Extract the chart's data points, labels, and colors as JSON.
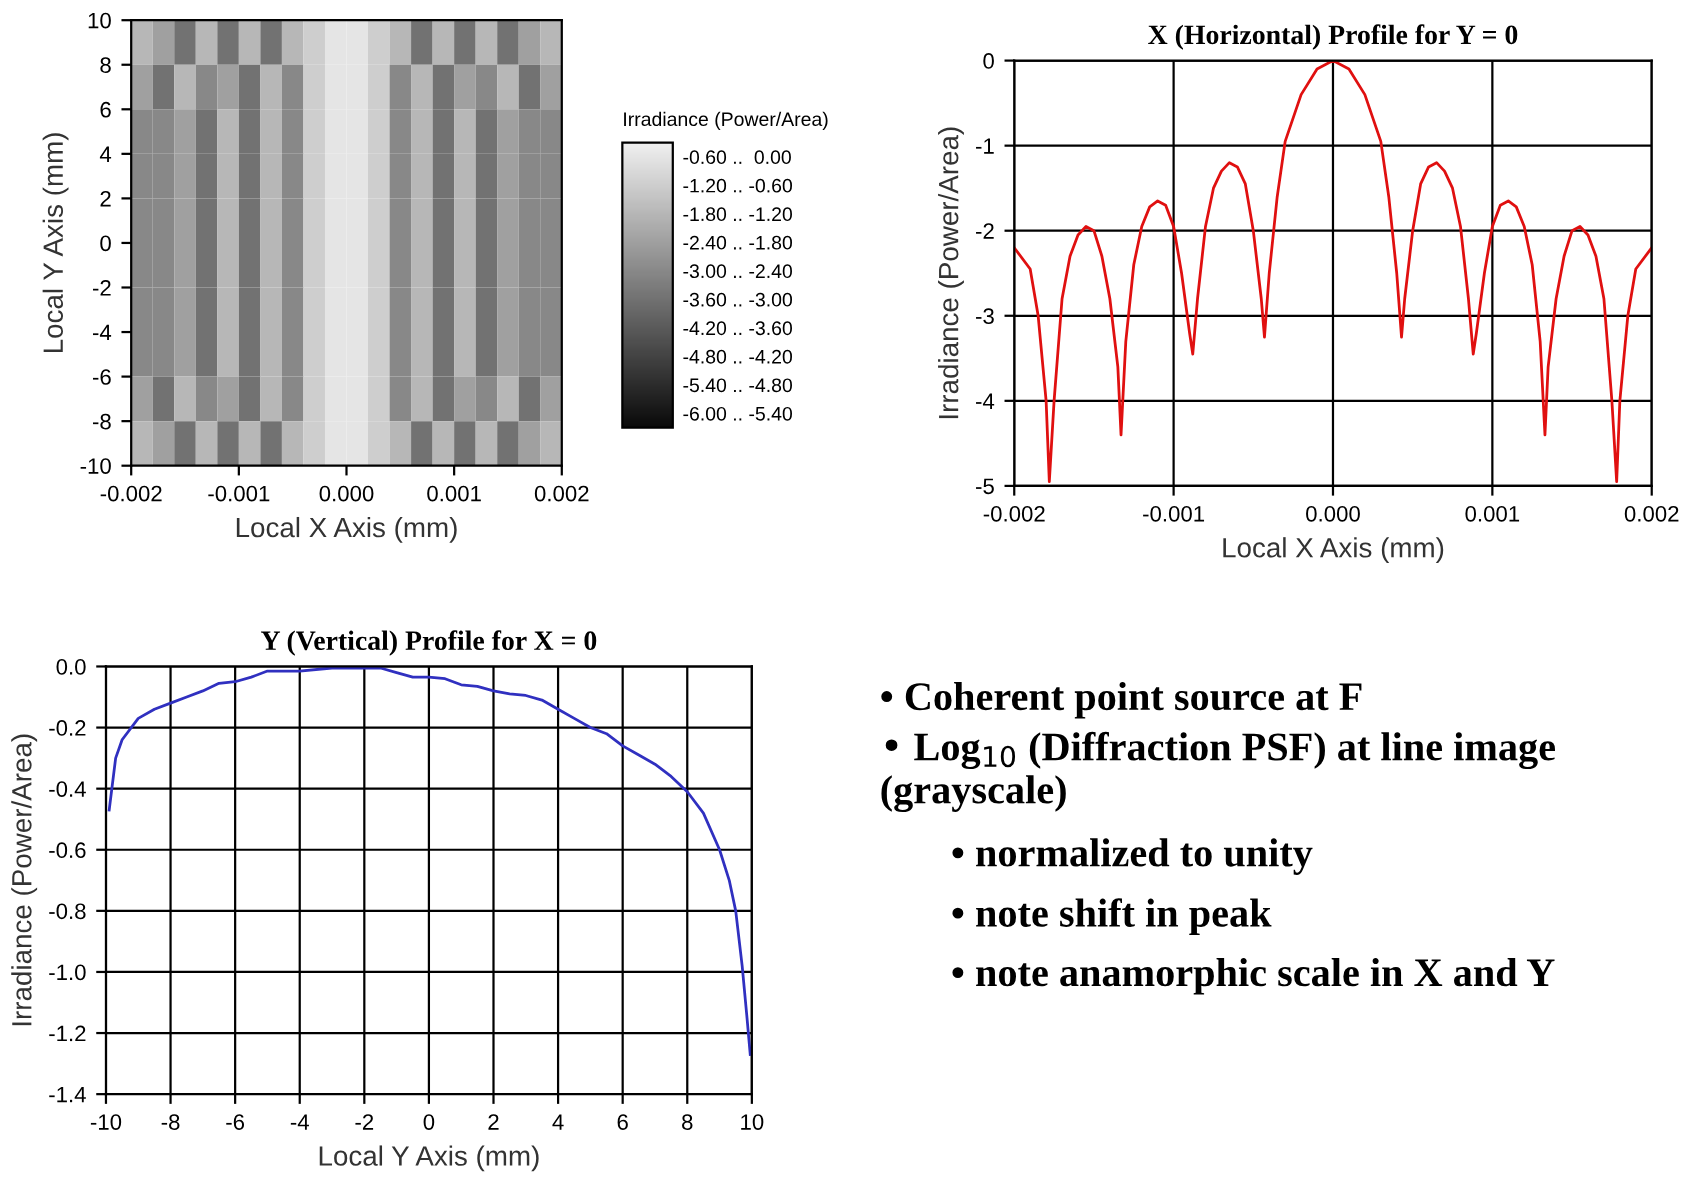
{
  "chart_data": [
    {
      "type": "heatmap",
      "xlabel": "Local X Axis (mm)",
      "ylabel": "Local Y Axis (mm)",
      "clabel": "Irradiance (Power/Area)",
      "xlim": [
        -0.002,
        0.002
      ],
      "ylim": [
        -10,
        10
      ],
      "xticks": [
        -0.002,
        -0.001,
        {
          "value": 0,
          "label": "0.000"
        },
        0.001,
        0.002
      ],
      "yticks": [
        -10,
        -8,
        -6,
        -4,
        -2,
        0,
        2,
        4,
        6,
        8,
        10
      ],
      "clim": [
        -6,
        0
      ],
      "cticks": [
        {
          "value": -0.3,
          "label": "-0.60 ..  0.00"
        },
        {
          "value": -0.9,
          "label": "-1.20 .. -0.60"
        },
        {
          "value": -1.5,
          "label": "-1.80 .. -1.20"
        },
        {
          "value": -2.1,
          "label": "-2.40 .. -1.80"
        },
        {
          "value": -2.7,
          "label": "-3.00 .. -2.40"
        },
        {
          "value": -3.3,
          "label": "-3.60 .. -3.00"
        },
        {
          "value": -3.9,
          "label": "-4.20 .. -3.60"
        },
        {
          "value": -4.5,
          "label": "-4.80 .. -4.20"
        },
        {
          "value": -5.1,
          "label": "-5.40 .. -4.80"
        },
        {
          "value": -5.7,
          "label": "-6.00 .. -5.40"
        }
      ],
      "cells": [
        [
          -1.5,
          -2.1,
          -3.3,
          -1.5,
          -3.3,
          -1.5,
          -3.3,
          -1.5,
          -0.9,
          -0.3,
          -0.3,
          -0.9,
          -1.5,
          -3.3,
          -1.5,
          -3.3,
          -1.5,
          -3.3,
          -2.1,
          -1.5
        ],
        [
          -2.1,
          -3.3,
          -1.5,
          -2.7,
          -2.1,
          -3.3,
          -1.5,
          -2.7,
          -0.9,
          -0.3,
          -0.3,
          -0.9,
          -2.7,
          -1.5,
          -3.3,
          -2.1,
          -2.7,
          -1.5,
          -3.3,
          -2.1
        ],
        [
          -2.7,
          -2.7,
          -2.1,
          -3.3,
          -1.5,
          -3.3,
          -1.5,
          -2.7,
          -0.9,
          -0.3,
          -0.3,
          -0.9,
          -2.7,
          -1.5,
          -3.3,
          -1.5,
          -3.3,
          -2.1,
          -2.7,
          -2.7
        ],
        [
          -2.7,
          -2.7,
          -2.1,
          -3.3,
          -1.5,
          -3.3,
          -1.5,
          -2.7,
          -0.9,
          -0.3,
          -0.3,
          -0.9,
          -2.7,
          -1.5,
          -3.3,
          -1.5,
          -3.3,
          -2.1,
          -2.7,
          -2.7
        ],
        [
          -2.7,
          -2.7,
          -2.1,
          -3.3,
          -1.5,
          -3.3,
          -1.5,
          -2.7,
          -0.9,
          -0.3,
          -0.3,
          -0.9,
          -2.7,
          -1.5,
          -3.3,
          -1.5,
          -3.3,
          -2.1,
          -2.7,
          -2.7
        ],
        [
          -2.7,
          -2.7,
          -2.1,
          -3.3,
          -1.5,
          -3.3,
          -1.5,
          -2.7,
          -0.9,
          -0.3,
          -0.3,
          -0.9,
          -2.7,
          -1.5,
          -3.3,
          -1.5,
          -3.3,
          -2.1,
          -2.7,
          -2.7
        ],
        [
          -2.7,
          -2.7,
          -2.1,
          -3.3,
          -1.5,
          -3.3,
          -1.5,
          -2.7,
          -0.9,
          -0.3,
          -0.3,
          -0.9,
          -2.7,
          -1.5,
          -3.3,
          -1.5,
          -3.3,
          -2.1,
          -2.7,
          -2.7
        ],
        [
          -2.7,
          -2.7,
          -2.1,
          -3.3,
          -1.5,
          -3.3,
          -1.5,
          -2.7,
          -0.9,
          -0.3,
          -0.3,
          -0.9,
          -2.7,
          -1.5,
          -3.3,
          -1.5,
          -3.3,
          -2.1,
          -2.7,
          -2.7
        ],
        [
          -2.1,
          -3.3,
          -1.5,
          -2.7,
          -2.1,
          -3.3,
          -1.5,
          -2.7,
          -0.9,
          -0.3,
          -0.3,
          -0.9,
          -2.7,
          -1.5,
          -3.3,
          -2.1,
          -2.7,
          -1.5,
          -3.3,
          -2.1
        ],
        [
          -1.5,
          -2.1,
          -3.3,
          -1.5,
          -3.3,
          -1.5,
          -3.3,
          -1.5,
          -0.9,
          -0.3,
          -0.3,
          -0.9,
          -1.5,
          -3.3,
          -1.5,
          -3.3,
          -1.5,
          -3.3,
          -2.1,
          -1.5
        ]
      ]
    },
    {
      "type": "line",
      "title": "X (Horizontal) Profile for Y = 0",
      "xlabel": "Local X Axis (mm)",
      "ylabel": "Irradiance (Power/Area)",
      "xlim": [
        -0.002,
        0.002
      ],
      "ylim": [
        -5,
        0
      ],
      "xticks": [
        -0.002,
        -0.001,
        {
          "value": 0,
          "label": "0.000"
        },
        0.001,
        0.002
      ],
      "yticks": [
        -5,
        -4,
        -3,
        -2,
        -1,
        0
      ],
      "grid": true,
      "series": [
        {
          "color": "#e01010",
          "x": [
            -0.002,
            -0.0019,
            -0.00185,
            -0.0018,
            -0.00178,
            -0.00175,
            -0.0017,
            -0.00165,
            -0.0016,
            -0.00155,
            -0.0015,
            -0.00145,
            -0.0014,
            -0.00135,
            -0.00133,
            -0.0013,
            -0.00125,
            -0.0012,
            -0.00115,
            -0.0011,
            -0.00105,
            -0.001,
            -0.00095,
            -0.0009,
            -0.00088,
            -0.00085,
            -0.0008,
            -0.00075,
            -0.0007,
            -0.00065,
            -0.0006,
            -0.00055,
            -0.0005,
            -0.00045,
            -0.00043,
            -0.0004,
            -0.00035,
            -0.0003,
            -0.0002,
            -0.0001,
            0,
            0.0001,
            0.0002,
            0.0003,
            0.00035,
            0.0004,
            0.00043,
            0.00045,
            0.0005,
            0.00055,
            0.0006,
            0.00065,
            0.0007,
            0.00075,
            0.0008,
            0.00085,
            0.00088,
            0.0009,
            0.00095,
            0.001,
            0.00105,
            0.0011,
            0.00115,
            0.0012,
            0.00125,
            0.0013,
            0.00133,
            0.00135,
            0.0014,
            0.00145,
            0.0015,
            0.00155,
            0.0016,
            0.00165,
            0.0017,
            0.00175,
            0.00178,
            0.0018,
            0.00185,
            0.0019,
            0.002
          ],
          "values": [
            -2.2,
            -2.45,
            -3.0,
            -4.0,
            -4.95,
            -4.0,
            -2.8,
            -2.3,
            -2.05,
            -1.95,
            -2.0,
            -2.3,
            -2.8,
            -3.6,
            -4.4,
            -3.3,
            -2.4,
            -1.95,
            -1.72,
            -1.65,
            -1.7,
            -1.95,
            -2.5,
            -3.2,
            -3.45,
            -2.8,
            -1.95,
            -1.5,
            -1.3,
            -1.2,
            -1.25,
            -1.45,
            -2.0,
            -2.8,
            -3.25,
            -2.5,
            -1.6,
            -0.95,
            -0.4,
            -0.1,
            0,
            -0.1,
            -0.4,
            -0.95,
            -1.6,
            -2.5,
            -3.25,
            -2.8,
            -2.0,
            -1.45,
            -1.25,
            -1.2,
            -1.3,
            -1.5,
            -1.95,
            -2.8,
            -3.45,
            -3.2,
            -2.5,
            -1.95,
            -1.7,
            -1.65,
            -1.72,
            -1.95,
            -2.4,
            -3.3,
            -4.4,
            -3.6,
            -2.8,
            -2.3,
            -2.0,
            -1.95,
            -2.05,
            -2.3,
            -2.8,
            -4.0,
            -4.95,
            -4.0,
            -3.0,
            -2.45,
            -2.2
          ]
        }
      ]
    },
    {
      "type": "line",
      "title": "Y (Vertical) Profile for X = 0",
      "xlabel": "Local Y Axis (mm)",
      "ylabel": "Irradiance (Power/Area)",
      "xlim": [
        -10,
        10
      ],
      "ylim": [
        -1.4,
        0.0
      ],
      "xticks": [
        -10,
        -8,
        -6,
        -4,
        -2,
        0,
        2,
        4,
        6,
        8,
        10
      ],
      "yticks": [
        -1.4,
        -1.2,
        {
          "value": -1,
          "label": "-1.0"
        },
        -0.8,
        -0.6,
        -0.4,
        -0.2,
        {
          "value": 0,
          "label": "0.0"
        }
      ],
      "grid": true,
      "series": [
        {
          "color": "#3030c0",
          "x": [
            -9.9,
            -9.7,
            -9.5,
            -9,
            -8.5,
            -8,
            -7.5,
            -7,
            -6.5,
            -6,
            -5.5,
            -5,
            -4,
            -3,
            -2,
            -1.5,
            -1,
            -0.5,
            0,
            0.5,
            1,
            1.5,
            2,
            2.5,
            3,
            3.5,
            4,
            4.5,
            5,
            5.5,
            6,
            6.5,
            7,
            7.5,
            8,
            8.5,
            9,
            9.3,
            9.5,
            9.7,
            9.85,
            9.95
          ],
          "values": [
            -0.47,
            -0.3,
            -0.24,
            -0.17,
            -0.14,
            -0.12,
            -0.1,
            -0.08,
            -0.055,
            -0.05,
            -0.035,
            -0.015,
            -0.015,
            -0.005,
            -0.005,
            -0.005,
            -0.02,
            -0.035,
            -0.035,
            -0.04,
            -0.06,
            -0.065,
            -0.08,
            -0.09,
            -0.095,
            -0.11,
            -0.14,
            -0.17,
            -0.2,
            -0.22,
            -0.26,
            -0.29,
            -0.32,
            -0.36,
            -0.41,
            -0.48,
            -0.6,
            -0.7,
            -0.8,
            -0.98,
            -1.15,
            -1.27
          ]
        }
      ]
    },
    {
      "type": "other",
      "annotations": [
        "• Coherent point source at F",
        "• Log$_{10}$ (Diffraction PSF) at line image (grayscale)",
        "• normalized to unity",
        "• note shift in peak",
        "• note anamorphic scale in X and Y"
      ]
    }
  ]
}
